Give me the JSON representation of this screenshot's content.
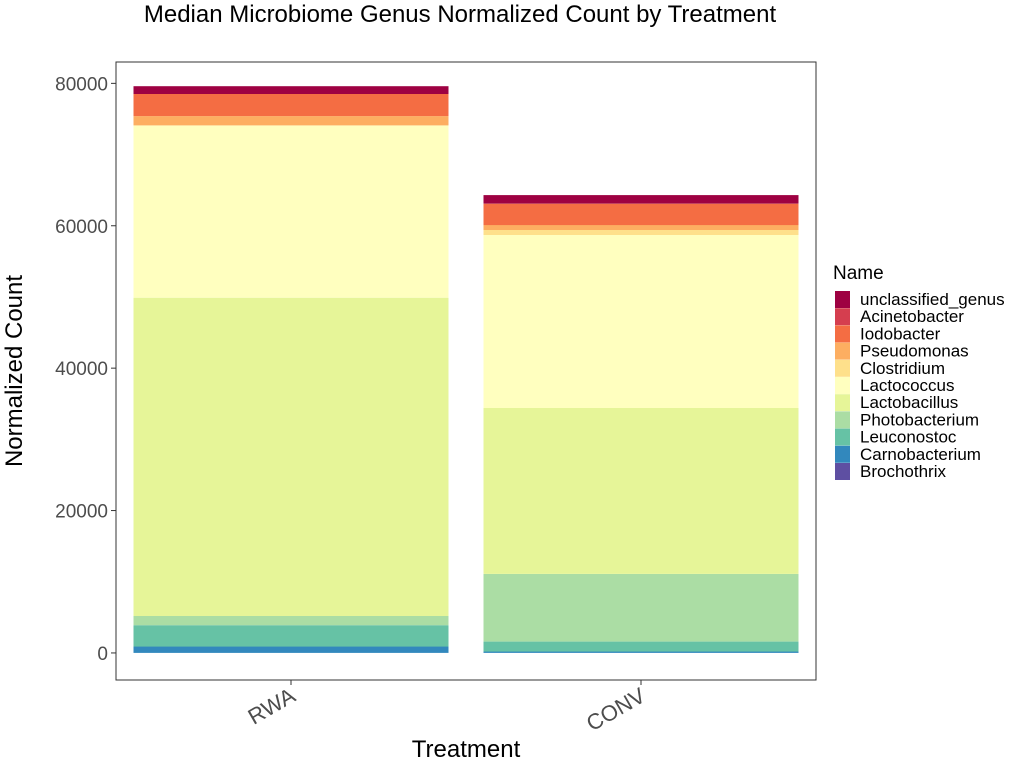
{
  "chart_data": {
    "type": "bar",
    "stacked": true,
    "title": "Median Microbiome Genus Normalized Count by Treatment",
    "xlabel": "Treatment",
    "ylabel": "Normalized Count",
    "categories": [
      "RWA",
      "CONV"
    ],
    "ylim": [
      -3800,
      83000
    ],
    "yticks": [
      0,
      20000,
      40000,
      60000,
      80000
    ],
    "grid": false,
    "legend": {
      "title": "Name",
      "position": "right"
    },
    "series": [
      {
        "name": "Brochothrix",
        "color": "#5E4FA2",
        "values": [
          0,
          0
        ]
      },
      {
        "name": "Carnobacterium",
        "color": "#3288BD",
        "values": [
          900,
          200
        ]
      },
      {
        "name": "Leuconostoc",
        "color": "#66C2A5",
        "values": [
          3000,
          1400
        ]
      },
      {
        "name": "Photobacterium",
        "color": "#ABDDA4",
        "values": [
          1300,
          9500
        ]
      },
      {
        "name": "Lactobacillus",
        "color": "#E6F598",
        "values": [
          44700,
          23300
        ]
      },
      {
        "name": "Lactococcus",
        "color": "#FFFFBF",
        "values": [
          24200,
          24300
        ]
      },
      {
        "name": "Clostridium",
        "color": "#FEE08B",
        "values": [
          0,
          700
        ]
      },
      {
        "name": "Pseudomonas",
        "color": "#FDAE61",
        "values": [
          1300,
          700
        ]
      },
      {
        "name": "Iodobacter",
        "color": "#F46D43",
        "values": [
          3100,
          3000
        ]
      },
      {
        "name": "Acinetobacter",
        "color": "#D53E4F",
        "values": [
          0,
          0
        ]
      },
      {
        "name": "unclassified_genus",
        "color": "#9E0142",
        "values": [
          1100,
          1200
        ]
      }
    ]
  }
}
